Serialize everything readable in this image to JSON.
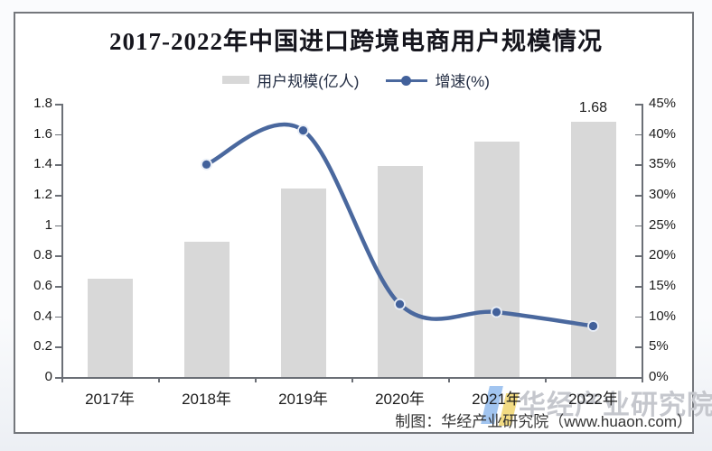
{
  "title": "2017-2022年中国进口跨境电商用户规模情况",
  "legend": {
    "items": [
      {
        "label": "用户规模(亿人)",
        "swatch": "bar-swatch",
        "color": "#d8d8d8"
      },
      {
        "label": "增速(%)",
        "swatch": "line-swatch",
        "color": "#4a689e"
      }
    ]
  },
  "chart_data": {
    "type": "bar",
    "subtype": "bar+line combo",
    "title": "2017-2022年中国进口跨境电商用户规模情况",
    "categories": [
      "2017年",
      "2018年",
      "2019年",
      "2020年",
      "2021年",
      "2022年"
    ],
    "series": [
      {
        "name": "用户规模(亿人)",
        "type": "bar",
        "axis": "left",
        "color": "#d8d8d8",
        "values": [
          0.65,
          0.89,
          1.24,
          1.39,
          1.55,
          1.68
        ]
      },
      {
        "name": "增速(%)",
        "type": "line",
        "axis": "right",
        "color": "#4a689e",
        "marker_color": "#42619b",
        "values": [
          null,
          35,
          40.6,
          12,
          10.7,
          8.4
        ]
      }
    ],
    "annotations": [
      {
        "series": 0,
        "index": 5,
        "text": "1.68"
      }
    ],
    "left_axis": {
      "min": 0,
      "max": 1.8,
      "step": 0.2,
      "ticks": [
        "0",
        "0.2",
        "0.4",
        "0.6",
        "0.8",
        "1",
        "1.2",
        "1.4",
        "1.6",
        "1.8"
      ]
    },
    "right_axis": {
      "min": 0,
      "max": 45,
      "step": 5,
      "ticks": [
        "0%",
        "5%",
        "10%",
        "15%",
        "20%",
        "25%",
        "30%",
        "35%",
        "40%",
        "45%"
      ]
    },
    "grid": false,
    "legend_position": "top"
  },
  "watermark": {
    "text": "华经产业研究院",
    "credit": "制图：华经产业研究院（www.huaon.com）",
    "logo_blue_color": "#a2c5f0",
    "logo_yellow_color": "#f2db83"
  },
  "colors": {
    "bar": "#d8d8d8",
    "line": "#4a689e",
    "marker": "#42619b",
    "axis": "#6b6f76",
    "box_border": "#74777c",
    "watermark": "#c5c7cd"
  }
}
